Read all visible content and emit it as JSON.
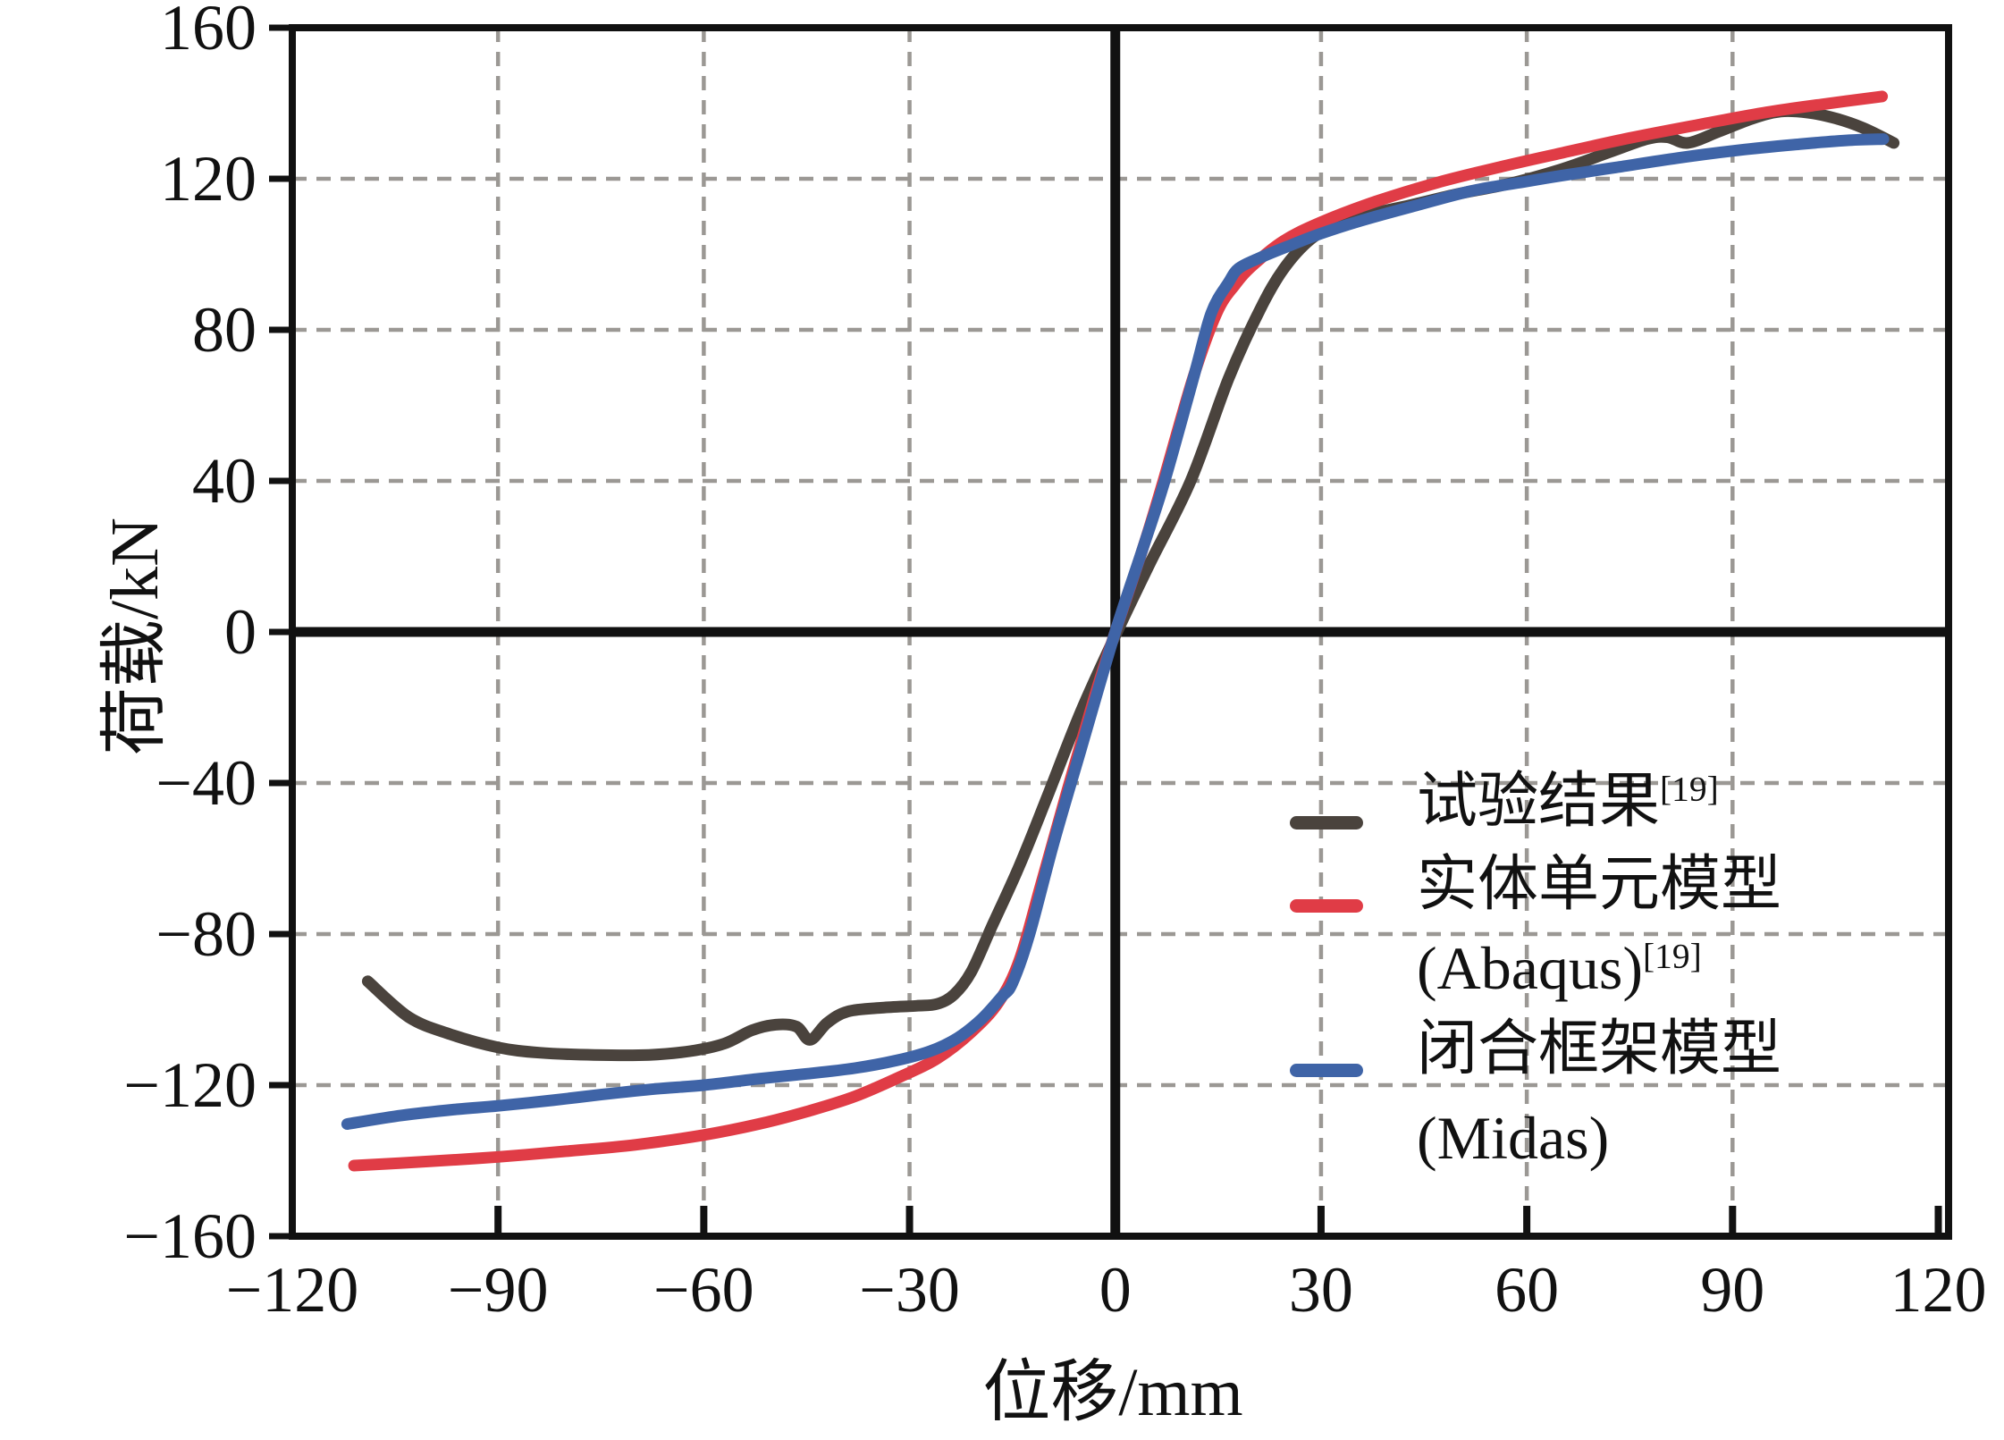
{
  "figure": {
    "y_axis_title": "荷载/kN",
    "x_axis_title": "位移/mm"
  },
  "legend": {
    "items": [
      {
        "label": "试验结果",
        "sup": "[19]",
        "label2": "",
        "sup2": "",
        "color": "#4a433d"
      },
      {
        "label": "实体单元模型",
        "sup": "",
        "label2": "(Abaqus)",
        "sup2": "[19]",
        "color": "#e03c46"
      },
      {
        "label": "闭合框架模型",
        "sup": "",
        "label2": "(Midas)",
        "sup2": "",
        "color": "#3f64a7"
      }
    ]
  },
  "colors": {
    "frame": "#111111",
    "zero_axis": "#111111",
    "grid": "#9b9894",
    "test_curve": "#4a433d",
    "abaqus_curve": "#e03c46",
    "midas_curve": "#3f64a7"
  },
  "chart_data": {
    "type": "line",
    "title": "",
    "xlabel": "位移/mm",
    "ylabel": "荷载/kN",
    "xlim": [
      -120,
      121.5
    ],
    "ylim": [
      -160,
      160
    ],
    "xticks": [
      -120,
      -90,
      -60,
      -30,
      0,
      30,
      60,
      90,
      120
    ],
    "yticks": [
      -160,
      -120,
      -80,
      -40,
      0,
      40,
      80,
      120,
      160
    ],
    "grid": "dashed interior gridlines, solid thick zero axes",
    "legend_position": "inside lower right",
    "series": [
      {
        "name": "试验结果[19]",
        "color": "#4a433d",
        "points": [
          [
            -109,
            -92.5
          ],
          [
            -103,
            -102
          ],
          [
            -97,
            -106.5
          ],
          [
            -90,
            -110
          ],
          [
            -84,
            -111.4
          ],
          [
            -76,
            -112
          ],
          [
            -68,
            -112
          ],
          [
            -62,
            -111
          ],
          [
            -57,
            -109
          ],
          [
            -53,
            -105.5
          ],
          [
            -49.5,
            -104
          ],
          [
            -46.5,
            -104.5
          ],
          [
            -44.5,
            -108
          ],
          [
            -42,
            -103.5
          ],
          [
            -39,
            -100.5
          ],
          [
            -34,
            -99.5
          ],
          [
            -29,
            -99
          ],
          [
            -26,
            -98.5
          ],
          [
            -23.5,
            -96
          ],
          [
            -21,
            -90
          ],
          [
            -18,
            -78
          ],
          [
            -14,
            -62
          ],
          [
            -10,
            -44
          ],
          [
            -5,
            -21
          ],
          [
            0,
            -1
          ],
          [
            5,
            18
          ],
          [
            11,
            40
          ],
          [
            16.5,
            67
          ],
          [
            21,
            85
          ],
          [
            24.5,
            96
          ],
          [
            28.5,
            104
          ],
          [
            33,
            108.5
          ],
          [
            38,
            111
          ],
          [
            43,
            113
          ],
          [
            50,
            116
          ],
          [
            57,
            118.5
          ],
          [
            65,
            122.5
          ],
          [
            72,
            127
          ],
          [
            77.5,
            130.5
          ],
          [
            80.5,
            131
          ],
          [
            83.5,
            129.5
          ],
          [
            88,
            132.5
          ],
          [
            93,
            136
          ],
          [
            97,
            137.8
          ],
          [
            101,
            137.5
          ],
          [
            105,
            136
          ],
          [
            109,
            133.5
          ],
          [
            113.5,
            129.5
          ]
        ]
      },
      {
        "name": "实体单元模型(Abaqus)[19]",
        "color": "#e03c46",
        "points": [
          [
            -111,
            -141.3
          ],
          [
            -100,
            -140.2
          ],
          [
            -90,
            -139
          ],
          [
            -80,
            -137.5
          ],
          [
            -70,
            -135.8
          ],
          [
            -60,
            -133.2
          ],
          [
            -52,
            -130.3
          ],
          [
            -45,
            -127
          ],
          [
            -38,
            -123
          ],
          [
            -31,
            -117.5
          ],
          [
            -26,
            -113
          ],
          [
            -21,
            -106
          ],
          [
            -17,
            -98
          ],
          [
            -14,
            -87
          ],
          [
            -11,
            -68
          ],
          [
            -7,
            -42
          ],
          [
            -3,
            -17
          ],
          [
            0,
            0
          ],
          [
            4,
            22
          ],
          [
            7,
            40
          ],
          [
            11.3,
            67
          ],
          [
            14.8,
            84.5
          ],
          [
            17.5,
            92
          ],
          [
            20,
            97
          ],
          [
            24.5,
            103.5
          ],
          [
            30,
            108.5
          ],
          [
            38,
            114
          ],
          [
            47,
            119
          ],
          [
            56.5,
            123.3
          ],
          [
            65,
            126.8
          ],
          [
            75,
            130.8
          ],
          [
            85,
            134.3
          ],
          [
            95,
            137.6
          ],
          [
            103,
            139.7
          ],
          [
            111.8,
            141.8
          ]
        ]
      },
      {
        "name": "闭合框架模型(Midas)",
        "color": "#3f64a7",
        "points": [
          [
            -112,
            -130.3
          ],
          [
            -104,
            -128
          ],
          [
            -96,
            -126.4
          ],
          [
            -90,
            -125.5
          ],
          [
            -82,
            -124
          ],
          [
            -75,
            -122.5
          ],
          [
            -67,
            -121
          ],
          [
            -60,
            -120
          ],
          [
            -52,
            -118.3
          ],
          [
            -45,
            -117
          ],
          [
            -38,
            -115.5
          ],
          [
            -32,
            -113.5
          ],
          [
            -27,
            -111
          ],
          [
            -23,
            -107.5
          ],
          [
            -19.5,
            -102.5
          ],
          [
            -16.5,
            -96.5
          ],
          [
            -15,
            -93
          ],
          [
            -12.5,
            -80
          ],
          [
            -9,
            -56
          ],
          [
            -5,
            -31
          ],
          [
            0,
            0
          ],
          [
            4,
            22
          ],
          [
            7.2,
            40
          ],
          [
            11.5,
            68
          ],
          [
            14,
            84.5
          ],
          [
            16.5,
            92.5
          ],
          [
            18,
            96.3
          ],
          [
            21,
            99
          ],
          [
            25,
            102
          ],
          [
            30,
            105.5
          ],
          [
            36,
            109
          ],
          [
            44,
            113
          ],
          [
            52,
            116.8
          ],
          [
            60,
            119.3
          ],
          [
            65,
            120.8
          ],
          [
            73,
            123
          ],
          [
            82,
            125.5
          ],
          [
            91,
            127.6
          ],
          [
            100,
            129.2
          ],
          [
            107,
            130.2
          ],
          [
            112,
            130.5
          ]
        ]
      }
    ]
  }
}
